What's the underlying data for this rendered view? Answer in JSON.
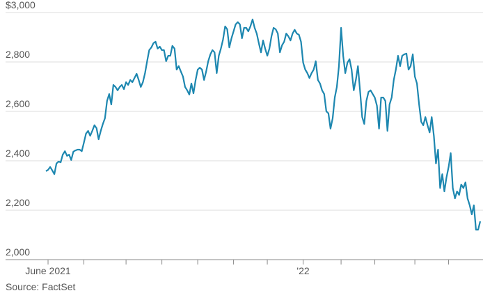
{
  "chart_data": {
    "type": "line",
    "categories": [
      null,
      "June 2021",
      null,
      null,
      null,
      null,
      null,
      null,
      null,
      null,
      null,
      null,
      null,
      null,
      null,
      null,
      null,
      null,
      null,
      null,
      null,
      null,
      null,
      null,
      null,
      null,
      null,
      null,
      null,
      null,
      null,
      null,
      null,
      null,
      null,
      null,
      null,
      null,
      null,
      null,
      null,
      null,
      null,
      null,
      null,
      null,
      null,
      null,
      null,
      null,
      null,
      null,
      null,
      null,
      null,
      null,
      null,
      null,
      null,
      null,
      null,
      null,
      null,
      null,
      null,
      null,
      null,
      null,
      null,
      null,
      null,
      null,
      null,
      null,
      null,
      null,
      null,
      null,
      null,
      null,
      null,
      null,
      null,
      null,
      null,
      null,
      null,
      null,
      null,
      null,
      null,
      null,
      null,
      null,
      null,
      null,
      null,
      null,
      null,
      null,
      null,
      null,
      null,
      null,
      null,
      null,
      null,
      null,
      null,
      null,
      null,
      null,
      null,
      null,
      null,
      null,
      null,
      null,
      null,
      null,
      null,
      null,
      "'22",
      null,
      null,
      null,
      null,
      null,
      null,
      null,
      null,
      null,
      null,
      null,
      null,
      null,
      null,
      null,
      null,
      null,
      null,
      null,
      null,
      null,
      null,
      null,
      null,
      null,
      null,
      null,
      null,
      null,
      null,
      null,
      null,
      null,
      null,
      null,
      null,
      null,
      null,
      null,
      null,
      null,
      null,
      null,
      null,
      null,
      null,
      null,
      null,
      null,
      null,
      null,
      null,
      null,
      null,
      null,
      null,
      null,
      null,
      null,
      null,
      null,
      null,
      null,
      null,
      null,
      null,
      null,
      null,
      null,
      null,
      null,
      null,
      null,
      null,
      null,
      null,
      null,
      null,
      null,
      null,
      null,
      null,
      null,
      null
    ],
    "values": [
      2358,
      2363,
      2375,
      2361,
      2346,
      2389,
      2397,
      2394,
      2425,
      2439,
      2420,
      2425,
      2403,
      2437,
      2442,
      2445,
      2445,
      2439,
      2473,
      2510,
      2521,
      2501,
      2521,
      2544,
      2532,
      2487,
      2521,
      2549,
      2572,
      2642,
      2670,
      2628,
      2707,
      2699,
      2685,
      2699,
      2707,
      2690,
      2718,
      2707,
      2727,
      2718,
      2735,
      2752,
      2727,
      2699,
      2718,
      2755,
      2803,
      2848,
      2859,
      2876,
      2882,
      2854,
      2862,
      2848,
      2848,
      2803,
      2825,
      2825,
      2865,
      2854,
      2769,
      2783,
      2761,
      2741,
      2699,
      2685,
      2668,
      2713,
      2673,
      2727,
      2769,
      2777,
      2769,
      2727,
      2761,
      2803,
      2831,
      2848,
      2839,
      2755,
      2825,
      2854,
      2890,
      2944,
      2932,
      2859,
      2896,
      2924,
      2952,
      2961,
      2952,
      2896,
      2938,
      2938,
      2924,
      2944,
      2972,
      2938,
      2915,
      2876,
      2839,
      2887,
      2854,
      2825,
      2854,
      2904,
      2938,
      2932,
      2915,
      2839,
      2868,
      2882,
      2915,
      2904,
      2887,
      2915,
      2930,
      2915,
      2910,
      2882,
      2797,
      2769,
      2755,
      2735,
      2755,
      2769,
      2803,
      2727,
      2713,
      2685,
      2670,
      2600,
      2592,
      2530,
      2572,
      2656,
      2699,
      2783,
      2938,
      2825,
      2755,
      2797,
      2811,
      2769,
      2685,
      2727,
      2783,
      2685,
      2577,
      2549,
      2642,
      2679,
      2685,
      2670,
      2656,
      2623,
      2530,
      2656,
      2656,
      2642,
      2521,
      2628,
      2656,
      2727,
      2769,
      2825,
      2783,
      2825,
      2831,
      2834,
      2769,
      2783,
      2831,
      2741,
      2713,
      2628,
      2558,
      2544,
      2577,
      2544,
      2515,
      2577,
      2501,
      2389,
      2445,
      2290,
      2346,
      2276,
      2332,
      2375,
      2431,
      2290,
      2248,
      2276,
      2262,
      2304,
      2290,
      2313,
      2248,
      2220,
      2183,
      2220,
      2121,
      2121,
      2155
    ],
    "color": "#1d87b0",
    "xticks": [
      1,
      18,
      38,
      55,
      72,
      89,
      105,
      122,
      140,
      156,
      175,
      191
    ],
    "ylim": [
      2000,
      3000
    ],
    "yticks": [
      {
        "value": 2000,
        "label": "2,000"
      },
      {
        "value": 2200,
        "label": "2,200"
      },
      {
        "value": 2400,
        "label": "2,400"
      },
      {
        "value": 2600,
        "label": "2,600"
      },
      {
        "value": 2800,
        "label": "2,800"
      },
      {
        "value": 3000,
        "label": "$3,000"
      }
    ],
    "grid": true,
    "source": "Source: FactSet"
  }
}
